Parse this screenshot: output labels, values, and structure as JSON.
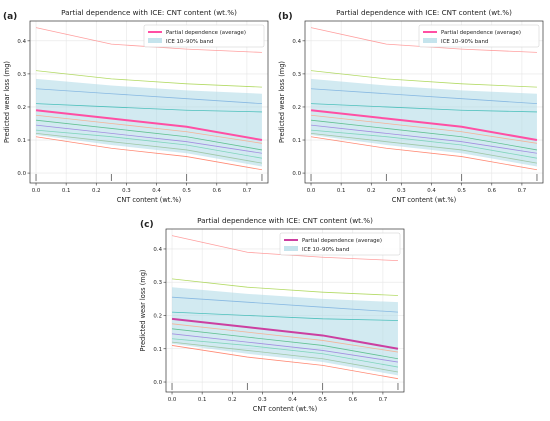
{
  "chart_data": [
    {
      "type": "line",
      "panel_label": "(a)",
      "title": "Partial dependence with ICE: CNT content (wt.%)",
      "xlabel": "CNT content (wt.%)",
      "ylabel": "Predicted wear loss (mg)",
      "xlim": [
        -0.02,
        0.77
      ],
      "ylim": [
        -0.03,
        0.46
      ],
      "xticks": [
        "0.0",
        "0.1",
        "0.2",
        "0.3",
        "0.4",
        "0.5",
        "0.6",
        "0.7"
      ],
      "yticks": [
        "0.0",
        "0.1",
        "0.2",
        "0.3",
        "0.4"
      ],
      "rug_x": [
        0.0,
        0.25,
        0.5,
        0.75
      ],
      "grid": true,
      "legend_position": "top-right",
      "x": [
        0.0,
        0.25,
        0.5,
        0.75
      ],
      "series": [
        {
          "name": "Partial dependence (average)",
          "role": "average",
          "color": "#ff4fa3",
          "values": [
            0.19,
            0.165,
            0.14,
            0.1
          ]
        },
        {
          "name": "ICE 10–90% band",
          "role": "band",
          "color": "#add8e6",
          "lower": [
            0.115,
            0.085,
            0.06,
            0.02
          ],
          "upper": [
            0.285,
            0.265,
            0.25,
            0.24
          ]
        },
        {
          "role": "ice",
          "color": "#ff7f7f",
          "values": [
            0.44,
            0.39,
            0.375,
            0.365
          ]
        },
        {
          "role": "ice",
          "color": "#9acd32",
          "values": [
            0.31,
            0.285,
            0.27,
            0.26
          ]
        },
        {
          "role": "ice",
          "color": "#6fa8dc",
          "values": [
            0.255,
            0.24,
            0.225,
            0.21
          ]
        },
        {
          "role": "ice",
          "color": "#20b2aa",
          "values": [
            0.21,
            0.2,
            0.19,
            0.185
          ]
        },
        {
          "role": "ice",
          "color": "#ffa07a",
          "values": [
            0.175,
            0.15,
            0.125,
            0.09
          ]
        },
        {
          "role": "ice",
          "color": "#3cb371",
          "values": [
            0.16,
            0.135,
            0.11,
            0.07
          ]
        },
        {
          "role": "ice",
          "color": "#9370db",
          "values": [
            0.145,
            0.12,
            0.095,
            0.06
          ]
        },
        {
          "role": "ice",
          "color": "#66cdaa",
          "values": [
            0.13,
            0.11,
            0.085,
            0.045
          ]
        },
        {
          "role": "ice",
          "color": "#8fbc8f",
          "values": [
            0.12,
            0.095,
            0.07,
            0.03
          ]
        },
        {
          "role": "ice",
          "color": "#ff6347",
          "values": [
            0.11,
            0.075,
            0.05,
            0.01
          ]
        }
      ]
    },
    {
      "type": "line",
      "panel_label": "(b)",
      "title": "Partial dependence with ICE: CNT content (wt.%)",
      "xlabel": "CNT content (wt.%)",
      "ylabel": "Predicted wear loss (mg)",
      "xlim": [
        -0.02,
        0.77
      ],
      "ylim": [
        -0.03,
        0.46
      ],
      "xticks": [
        "0.0",
        "0.1",
        "0.2",
        "0.3",
        "0.4",
        "0.5",
        "0.6",
        "0.7"
      ],
      "yticks": [
        "0.0",
        "0.1",
        "0.2",
        "0.3",
        "0.4"
      ],
      "rug_x": [
        0.0,
        0.25,
        0.5,
        0.75
      ],
      "grid": true,
      "legend_position": "top-right",
      "x": [
        0.0,
        0.25,
        0.5,
        0.75
      ],
      "series": [
        {
          "name": "Partial dependence (average)",
          "role": "average",
          "color": "#ff4fa3",
          "values": [
            0.19,
            0.165,
            0.14,
            0.1
          ]
        },
        {
          "name": "ICE 10–90% band",
          "role": "band",
          "color": "#add8e6",
          "lower": [
            0.115,
            0.085,
            0.06,
            0.02
          ],
          "upper": [
            0.285,
            0.265,
            0.25,
            0.24
          ]
        },
        {
          "role": "ice",
          "color": "#ff7f7f",
          "values": [
            0.44,
            0.39,
            0.375,
            0.365
          ]
        },
        {
          "role": "ice",
          "color": "#9acd32",
          "values": [
            0.31,
            0.285,
            0.27,
            0.26
          ]
        },
        {
          "role": "ice",
          "color": "#6fa8dc",
          "values": [
            0.255,
            0.24,
            0.225,
            0.21
          ]
        },
        {
          "role": "ice",
          "color": "#20b2aa",
          "values": [
            0.21,
            0.2,
            0.19,
            0.185
          ]
        },
        {
          "role": "ice",
          "color": "#ffa07a",
          "values": [
            0.175,
            0.15,
            0.125,
            0.09
          ]
        },
        {
          "role": "ice",
          "color": "#3cb371",
          "values": [
            0.16,
            0.135,
            0.11,
            0.07
          ]
        },
        {
          "role": "ice",
          "color": "#9370db",
          "values": [
            0.145,
            0.12,
            0.095,
            0.06
          ]
        },
        {
          "role": "ice",
          "color": "#66cdaa",
          "values": [
            0.13,
            0.11,
            0.085,
            0.045
          ]
        },
        {
          "role": "ice",
          "color": "#8fbc8f",
          "values": [
            0.12,
            0.095,
            0.07,
            0.03
          ]
        },
        {
          "role": "ice",
          "color": "#ff6347",
          "values": [
            0.11,
            0.075,
            0.05,
            0.01
          ]
        }
      ]
    },
    {
      "type": "line",
      "panel_label": "(c)",
      "title": "Partial dependence with ICE: CNT content (wt.%)",
      "xlabel": "CNT content (wt.%)",
      "ylabel": "Predicted wear loss (mg)",
      "xlim": [
        -0.02,
        0.77
      ],
      "ylim": [
        -0.03,
        0.46
      ],
      "xticks": [
        "0.0",
        "0.1",
        "0.2",
        "0.3",
        "0.4",
        "0.5",
        "0.6",
        "0.7"
      ],
      "yticks": [
        "0.0",
        "0.1",
        "0.2",
        "0.3",
        "0.4"
      ],
      "rug_x": [
        0.0,
        0.25,
        0.5,
        0.75
      ],
      "grid": true,
      "legend_position": "top-right",
      "x": [
        0.0,
        0.25,
        0.5,
        0.75
      ],
      "series": [
        {
          "name": "Partial dependence (average)",
          "role": "average",
          "color": "#cc3fa0",
          "values": [
            0.19,
            0.165,
            0.14,
            0.1
          ]
        },
        {
          "name": "ICE 10–90% band",
          "role": "band",
          "color": "#add8e6",
          "lower": [
            0.115,
            0.085,
            0.06,
            0.02
          ],
          "upper": [
            0.285,
            0.265,
            0.25,
            0.24
          ]
        },
        {
          "role": "ice",
          "color": "#ff7f7f",
          "values": [
            0.44,
            0.39,
            0.375,
            0.365
          ]
        },
        {
          "role": "ice",
          "color": "#9acd32",
          "values": [
            0.31,
            0.285,
            0.27,
            0.26
          ]
        },
        {
          "role": "ice",
          "color": "#6fa8dc",
          "values": [
            0.255,
            0.24,
            0.225,
            0.21
          ]
        },
        {
          "role": "ice",
          "color": "#20b2aa",
          "values": [
            0.21,
            0.2,
            0.19,
            0.185
          ]
        },
        {
          "role": "ice",
          "color": "#ffa07a",
          "values": [
            0.175,
            0.15,
            0.125,
            0.09
          ]
        },
        {
          "role": "ice",
          "color": "#3cb371",
          "values": [
            0.16,
            0.135,
            0.11,
            0.07
          ]
        },
        {
          "role": "ice",
          "color": "#9370db",
          "values": [
            0.145,
            0.12,
            0.095,
            0.06
          ]
        },
        {
          "role": "ice",
          "color": "#66cdaa",
          "values": [
            0.13,
            0.11,
            0.085,
            0.045
          ]
        },
        {
          "role": "ice",
          "color": "#8fbc8f",
          "values": [
            0.12,
            0.095,
            0.07,
            0.03
          ]
        },
        {
          "role": "ice",
          "color": "#ff6347",
          "values": [
            0.11,
            0.075,
            0.05,
            0.01
          ]
        }
      ]
    }
  ]
}
